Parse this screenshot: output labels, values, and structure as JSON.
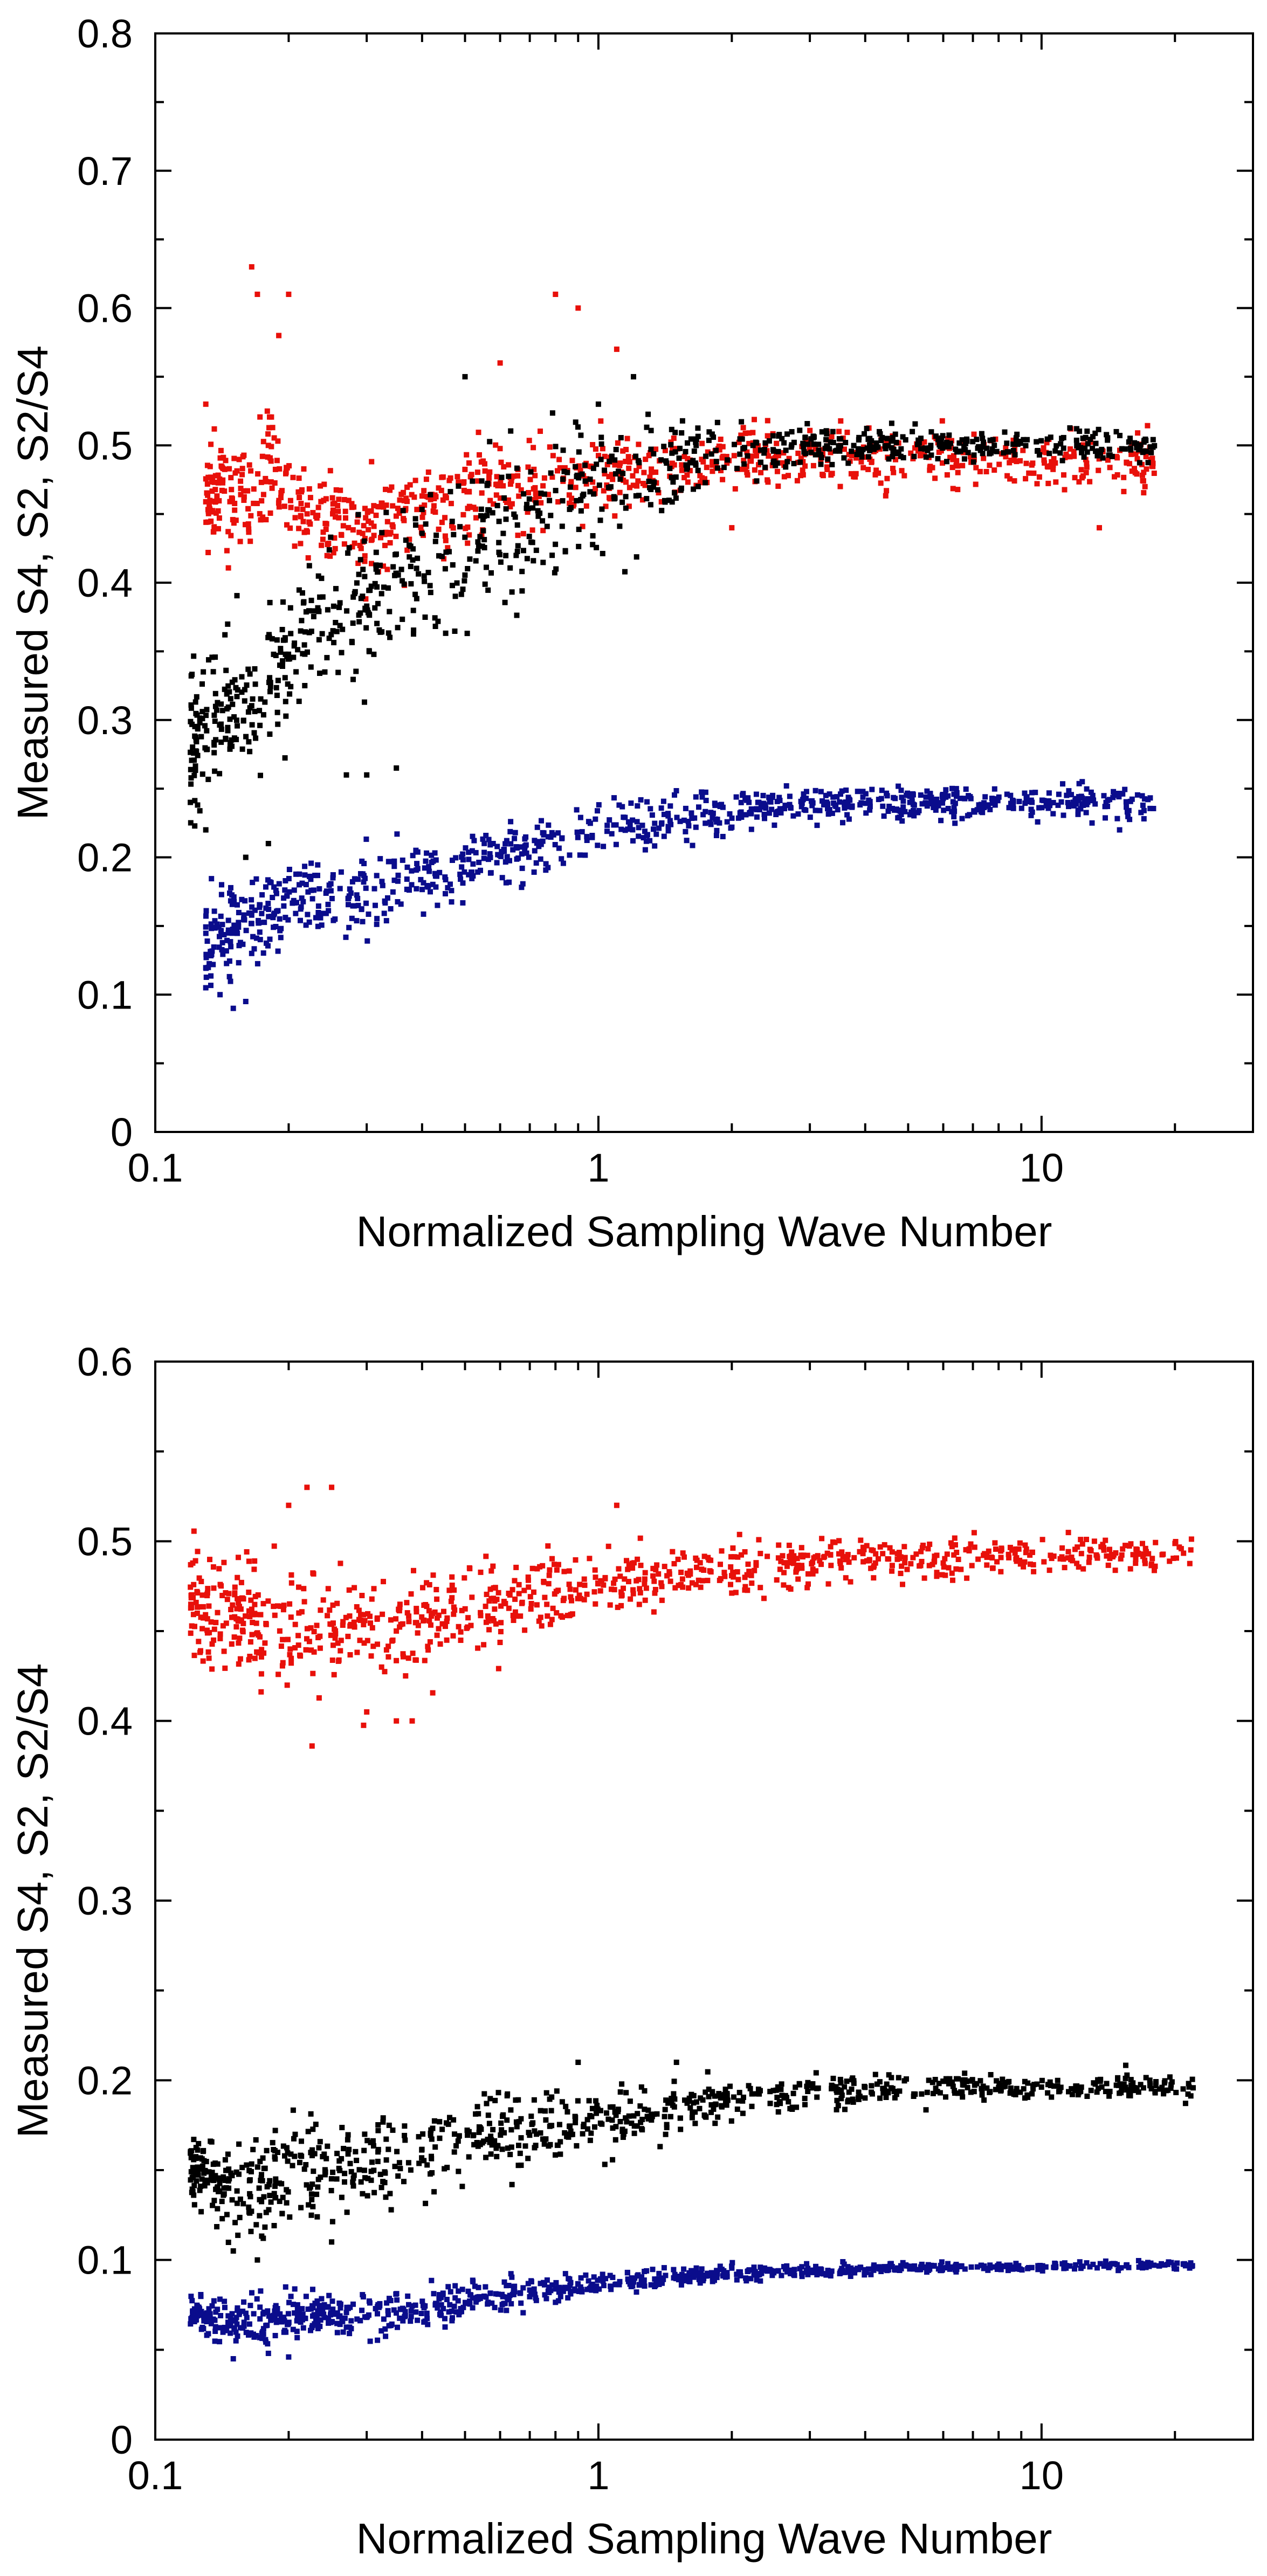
{
  "chart_data": [
    {
      "type": "scatter",
      "title": "",
      "xlabel": "Normalized Sampling Wave Number",
      "ylabel": "Measured S4,  S2,  S2/S4",
      "xscale": "log",
      "xlim": [
        0.1,
        30
      ],
      "ylim": [
        0,
        0.8
      ],
      "x_ticks": [
        0.1,
        1,
        10
      ],
      "x_tick_labels": [
        "0.1",
        "1",
        "10"
      ],
      "y_ticks": [
        0,
        0.1,
        0.2,
        0.3,
        0.4,
        0.5,
        0.6,
        0.7,
        0.8
      ],
      "y_tick_labels": [
        "0",
        "0.1",
        "0.2",
        "0.3",
        "0.4",
        "0.5",
        "0.6",
        "0.7",
        "0.8"
      ],
      "grid": false,
      "series": [
        {
          "name": "S2/S4",
          "color": "#e8100a",
          "points": [
            [
              0.13,
              0.46
            ],
            [
              0.14,
              0.47
            ],
            [
              0.15,
              0.465
            ],
            [
              0.16,
              0.455
            ],
            [
              0.17,
              0.46
            ],
            [
              0.18,
              0.48
            ],
            [
              0.2,
              0.46
            ],
            [
              0.22,
              0.45
            ],
            [
              0.25,
              0.45
            ],
            [
              0.28,
              0.44
            ],
            [
              0.32,
              0.445
            ],
            [
              0.36,
              0.45
            ],
            [
              0.4,
              0.46
            ],
            [
              0.45,
              0.46
            ],
            [
              0.5,
              0.465
            ],
            [
              0.6,
              0.47
            ],
            [
              0.7,
              0.47
            ],
            [
              0.8,
              0.475
            ],
            [
              1.0,
              0.48
            ],
            [
              1.3,
              0.48
            ],
            [
              1.6,
              0.485
            ],
            [
              2.0,
              0.49
            ],
            [
              3.0,
              0.49
            ],
            [
              4.0,
              0.49
            ],
            [
              6.0,
              0.49
            ],
            [
              9.0,
              0.49
            ],
            [
              13.0,
              0.49
            ],
            [
              18.0,
              0.49
            ]
          ],
          "spread": [
            0.03,
            0.035,
            0.04,
            0.045,
            0.04,
            0.04,
            0.035,
            0.03,
            0.03,
            0.03,
            0.03,
            0.03,
            0.03,
            0.03,
            0.03,
            0.03,
            0.03,
            0.03,
            0.025,
            0.025,
            0.02,
            0.02,
            0.02,
            0.02,
            0.02,
            0.02,
            0.02,
            0.02
          ],
          "outliers": [
            [
              0.165,
              0.63
            ],
            [
              0.17,
              0.61
            ],
            [
              0.2,
              0.61
            ],
            [
              0.19,
              0.58
            ],
            [
              0.8,
              0.61
            ],
            [
              0.9,
              0.6
            ],
            [
              1.1,
              0.57
            ],
            [
              0.13,
              0.53
            ],
            [
              0.6,
              0.56
            ],
            [
              13.5,
              0.44
            ],
            [
              2.0,
              0.44
            ]
          ]
        },
        {
          "name": "S4",
          "color": "#000000",
          "points": [
            [
              0.12,
              0.28
            ],
            [
              0.13,
              0.3
            ],
            [
              0.14,
              0.3
            ],
            [
              0.15,
              0.31
            ],
            [
              0.16,
              0.32
            ],
            [
              0.17,
              0.3
            ],
            [
              0.18,
              0.33
            ],
            [
              0.2,
              0.35
            ],
            [
              0.22,
              0.37
            ],
            [
              0.25,
              0.38
            ],
            [
              0.3,
              0.39
            ],
            [
              0.35,
              0.4
            ],
            [
              0.4,
              0.41
            ],
            [
              0.45,
              0.42
            ],
            [
              0.5,
              0.43
            ],
            [
              0.6,
              0.44
            ],
            [
              0.7,
              0.45
            ],
            [
              0.8,
              0.46
            ],
            [
              1.0,
              0.47
            ],
            [
              1.3,
              0.48
            ],
            [
              1.6,
              0.49
            ],
            [
              2.0,
              0.495
            ],
            [
              3.0,
              0.5
            ],
            [
              4.0,
              0.5
            ],
            [
              6.0,
              0.5
            ],
            [
              9.0,
              0.5
            ],
            [
              13.0,
              0.5
            ],
            [
              18.0,
              0.5
            ]
          ],
          "spread": [
            0.05,
            0.05,
            0.05,
            0.05,
            0.05,
            0.05,
            0.05,
            0.05,
            0.05,
            0.05,
            0.05,
            0.05,
            0.05,
            0.05,
            0.05,
            0.045,
            0.045,
            0.045,
            0.04,
            0.035,
            0.025,
            0.02,
            0.012,
            0.01,
            0.01,
            0.01,
            0.01,
            0.01
          ],
          "outliers": [
            [
              0.12,
              0.24
            ],
            [
              0.13,
              0.22
            ],
            [
              0.16,
              0.2
            ],
            [
              0.18,
              0.21
            ],
            [
              0.27,
              0.26
            ],
            [
              0.3,
              0.26
            ],
            [
              0.35,
              0.265
            ],
            [
              0.5,
              0.55
            ],
            [
              1.2,
              0.55
            ],
            [
              1.0,
              0.53
            ]
          ]
        },
        {
          "name": "S2",
          "color": "#0a0c8c",
          "points": [
            [
              0.13,
              0.13
            ],
            [
              0.14,
              0.14
            ],
            [
              0.15,
              0.15
            ],
            [
              0.16,
              0.15
            ],
            [
              0.17,
              0.155
            ],
            [
              0.18,
              0.16
            ],
            [
              0.2,
              0.165
            ],
            [
              0.22,
              0.17
            ],
            [
              0.25,
              0.17
            ],
            [
              0.28,
              0.175
            ],
            [
              0.32,
              0.18
            ],
            [
              0.36,
              0.185
            ],
            [
              0.4,
              0.19
            ],
            [
              0.45,
              0.19
            ],
            [
              0.5,
              0.195
            ],
            [
              0.6,
              0.2
            ],
            [
              0.7,
              0.205
            ],
            [
              0.8,
              0.21
            ],
            [
              1.0,
              0.22
            ],
            [
              1.3,
              0.225
            ],
            [
              1.6,
              0.23
            ],
            [
              2.0,
              0.235
            ],
            [
              3.0,
              0.238
            ],
            [
              4.0,
              0.24
            ],
            [
              6.0,
              0.24
            ],
            [
              9.0,
              0.24
            ],
            [
              13.0,
              0.24
            ],
            [
              18.0,
              0.24
            ]
          ],
          "spread": [
            0.03,
            0.03,
            0.03,
            0.03,
            0.03,
            0.03,
            0.025,
            0.025,
            0.025,
            0.025,
            0.025,
            0.025,
            0.025,
            0.02,
            0.02,
            0.02,
            0.02,
            0.02,
            0.02,
            0.015,
            0.015,
            0.012,
            0.01,
            0.01,
            0.01,
            0.01,
            0.01,
            0.01
          ],
          "outliers": [
            [
              0.15,
              0.09
            ],
            [
              0.16,
              0.095
            ],
            [
              0.13,
              0.105
            ],
            [
              0.14,
              0.1
            ],
            [
              13.0,
              0.225
            ],
            [
              15.0,
              0.22
            ]
          ]
        }
      ]
    },
    {
      "type": "scatter",
      "title": "",
      "xlabel": "Normalized Sampling Wave Number",
      "ylabel": "Measured S4,  S2,  S2/S4",
      "xscale": "log",
      "xlim": [
        0.1,
        30
      ],
      "ylim": [
        0,
        0.6
      ],
      "x_ticks": [
        0.1,
        1,
        10
      ],
      "x_tick_labels": [
        "0.1",
        "1",
        "10"
      ],
      "y_ticks": [
        0,
        0.1,
        0.2,
        0.3,
        0.4,
        0.5,
        0.6
      ],
      "y_tick_labels": [
        "0",
        "0.1",
        "0.2",
        "0.3",
        "0.4",
        "0.5",
        "0.6"
      ],
      "grid": false,
      "series": [
        {
          "name": "S2/S4",
          "color": "#e8100a",
          "points": [
            [
              0.12,
              0.47
            ],
            [
              0.13,
              0.46
            ],
            [
              0.15,
              0.46
            ],
            [
              0.17,
              0.455
            ],
            [
              0.2,
              0.45
            ],
            [
              0.22,
              0.45
            ],
            [
              0.25,
              0.45
            ],
            [
              0.3,
              0.45
            ],
            [
              0.35,
              0.455
            ],
            [
              0.4,
              0.455
            ],
            [
              0.5,
              0.46
            ],
            [
              0.6,
              0.465
            ],
            [
              0.7,
              0.47
            ],
            [
              0.8,
              0.472
            ],
            [
              1.0,
              0.475
            ],
            [
              1.3,
              0.48
            ],
            [
              1.6,
              0.482
            ],
            [
              2.0,
              0.485
            ],
            [
              3.0,
              0.488
            ],
            [
              4.0,
              0.49
            ],
            [
              6.0,
              0.49
            ],
            [
              9.0,
              0.492
            ],
            [
              13.0,
              0.492
            ],
            [
              18.0,
              0.493
            ],
            [
              22.0,
              0.495
            ]
          ],
          "spread": [
            0.025,
            0.025,
            0.025,
            0.03,
            0.03,
            0.03,
            0.03,
            0.03,
            0.03,
            0.025,
            0.02,
            0.02,
            0.018,
            0.018,
            0.015,
            0.015,
            0.012,
            0.012,
            0.01,
            0.01,
            0.01,
            0.01,
            0.01,
            0.01,
            0.01
          ],
          "outliers": [
            [
              0.22,
              0.53
            ],
            [
              0.25,
              0.53
            ],
            [
              0.2,
              0.52
            ],
            [
              1.1,
              0.52
            ],
            [
              0.38,
              0.4
            ],
            [
              0.35,
              0.4
            ],
            [
              0.3,
              0.405
            ]
          ]
        },
        {
          "name": "S4",
          "color": "#000000",
          "points": [
            [
              0.12,
              0.15
            ],
            [
              0.13,
              0.145
            ],
            [
              0.15,
              0.14
            ],
            [
              0.17,
              0.14
            ],
            [
              0.2,
              0.145
            ],
            [
              0.22,
              0.15
            ],
            [
              0.25,
              0.15
            ],
            [
              0.3,
              0.155
            ],
            [
              0.35,
              0.16
            ],
            [
              0.4,
              0.162
            ],
            [
              0.5,
              0.165
            ],
            [
              0.6,
              0.17
            ],
            [
              0.7,
              0.173
            ],
            [
              0.8,
              0.175
            ],
            [
              1.0,
              0.178
            ],
            [
              1.3,
              0.182
            ],
            [
              1.6,
              0.186
            ],
            [
              2.0,
              0.19
            ],
            [
              3.0,
              0.193
            ],
            [
              4.0,
              0.195
            ],
            [
              6.0,
              0.196
            ],
            [
              9.0,
              0.196
            ],
            [
              13.0,
              0.196
            ],
            [
              18.0,
              0.196
            ],
            [
              22.0,
              0.195
            ]
          ],
          "spread": [
            0.02,
            0.02,
            0.025,
            0.025,
            0.025,
            0.025,
            0.025,
            0.025,
            0.025,
            0.02,
            0.02,
            0.02,
            0.018,
            0.016,
            0.015,
            0.013,
            0.011,
            0.01,
            0.008,
            0.007,
            0.006,
            0.006,
            0.006,
            0.006,
            0.006
          ],
          "outliers": [
            [
              0.15,
              0.105
            ],
            [
              0.17,
              0.1
            ],
            [
              0.25,
              0.11
            ],
            [
              1.5,
              0.21
            ],
            [
              0.9,
              0.21
            ]
          ]
        },
        {
          "name": "S2",
          "color": "#0a0c8c",
          "points": [
            [
              0.12,
              0.07
            ],
            [
              0.13,
              0.068
            ],
            [
              0.15,
              0.065
            ],
            [
              0.17,
              0.065
            ],
            [
              0.2,
              0.067
            ],
            [
              0.22,
              0.068
            ],
            [
              0.25,
              0.069
            ],
            [
              0.3,
              0.07
            ],
            [
              0.35,
              0.072
            ],
            [
              0.4,
              0.074
            ],
            [
              0.5,
              0.077
            ],
            [
              0.6,
              0.08
            ],
            [
              0.7,
              0.082
            ],
            [
              0.8,
              0.084
            ],
            [
              1.0,
              0.087
            ],
            [
              1.3,
              0.089
            ],
            [
              1.6,
              0.091
            ],
            [
              2.0,
              0.093
            ],
            [
              3.0,
              0.094
            ],
            [
              4.0,
              0.095
            ],
            [
              6.0,
              0.096
            ],
            [
              9.0,
              0.096
            ],
            [
              13.0,
              0.097
            ],
            [
              18.0,
              0.097
            ],
            [
              22.0,
              0.097
            ]
          ],
          "spread": [
            0.008,
            0.01,
            0.012,
            0.012,
            0.012,
            0.012,
            0.012,
            0.012,
            0.011,
            0.01,
            0.009,
            0.008,
            0.007,
            0.006,
            0.005,
            0.005,
            0.004,
            0.004,
            0.003,
            0.003,
            0.002,
            0.002,
            0.002,
            0.002,
            0.002
          ],
          "outliers": [
            [
              0.15,
              0.045
            ],
            [
              0.2,
              0.046
            ],
            [
              0.18,
              0.048
            ]
          ]
        }
      ]
    }
  ]
}
